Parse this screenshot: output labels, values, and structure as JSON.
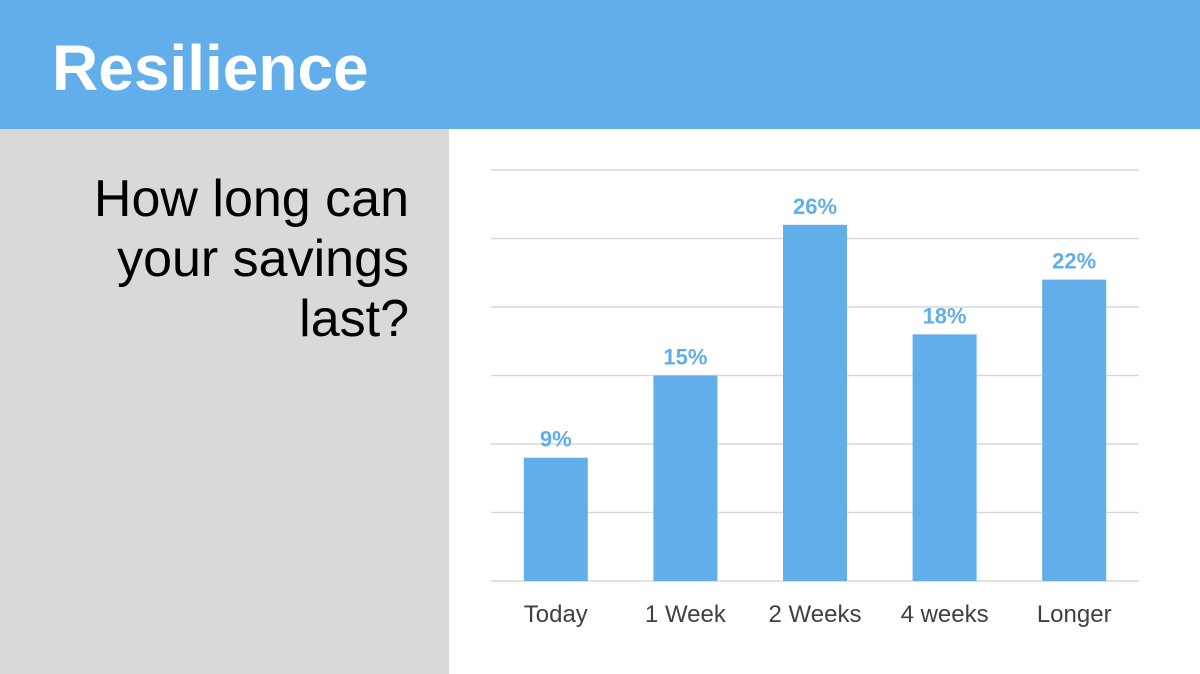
{
  "header": {
    "title": "Resilience"
  },
  "side": {
    "question": "How long can your savings last?"
  },
  "colors": {
    "header_bg": "#62aeea",
    "side_bg": "#d9d9d9",
    "bar": "#62aeea",
    "bar_label": "#62aeea",
    "gridline": "#d9d9d9",
    "axis_label": "#404040"
  },
  "chart_data": {
    "type": "bar",
    "categories": [
      "Today",
      "1 Week",
      "2 Weeks",
      "4 weeks",
      "Longer"
    ],
    "values": [
      9,
      15,
      26,
      18,
      22
    ],
    "data_labels": [
      "9%",
      "15%",
      "26%",
      "18%",
      "22%"
    ],
    "ylim": [
      0,
      30
    ],
    "y_gridline_step": 5,
    "grid": true,
    "legend": "none",
    "title": "",
    "xlabel": "",
    "ylabel": ""
  }
}
